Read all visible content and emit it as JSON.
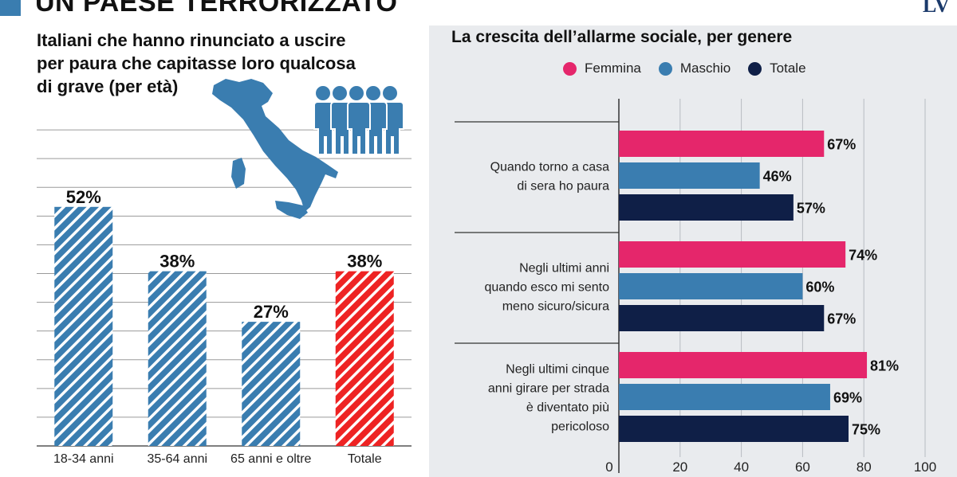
{
  "header": {
    "title": "UN PAESE TERRORIZZATO",
    "logo": "LV",
    "accent": "#3a7db0"
  },
  "icons": [
    "italy-map-icon",
    "people-group-icon"
  ],
  "chart_data": [
    {
      "type": "bar",
      "title": "Italiani che hanno rinunciato a uscire\nper paura  che capitasse loro qualcosa\ndi grave (per età)",
      "categories": [
        "18-34 anni",
        "35-64 anni",
        "65 anni e oltre",
        "Totale"
      ],
      "values": [
        52,
        38,
        27,
        38
      ],
      "data_labels": [
        "52%",
        "38%",
        "27%",
        "38%"
      ],
      "colors": [
        "#3a7db0",
        "#3a7db0",
        "#3a7db0",
        "#ee2323"
      ],
      "pattern": "diagonal-stripes",
      "ylim": [
        0,
        75
      ],
      "grid": true
    },
    {
      "type": "bar",
      "orientation": "horizontal",
      "title": "La crescita dell’allarme sociale, per genere",
      "categories": [
        "Quando torno a casa\ndi sera ho paura",
        "Negli ultimi anni\nquando esco mi sento\nmeno sicuro/sicura",
        "Negli ultimi cinque\nanni girare per strada\nè diventato più\npericoloso"
      ],
      "series": [
        {
          "name": "Femmina",
          "color": "#e5266b",
          "values": [
            67,
            74,
            81
          ],
          "labels": [
            "67%",
            "74%",
            "81%"
          ]
        },
        {
          "name": "Maschio",
          "color": "#3a7db0",
          "values": [
            46,
            60,
            69
          ],
          "labels": [
            "46%",
            "60%",
            "69%"
          ]
        },
        {
          "name": "Totale",
          "color": "#0f1f47",
          "values": [
            57,
            67,
            75
          ],
          "labels": [
            "57%",
            "67%",
            "75%"
          ]
        }
      ],
      "xlim": [
        0,
        100
      ],
      "xticks": [
        "0",
        "20",
        "40",
        "60",
        "80",
        "100"
      ],
      "legend_position": "top",
      "grid": true
    }
  ]
}
